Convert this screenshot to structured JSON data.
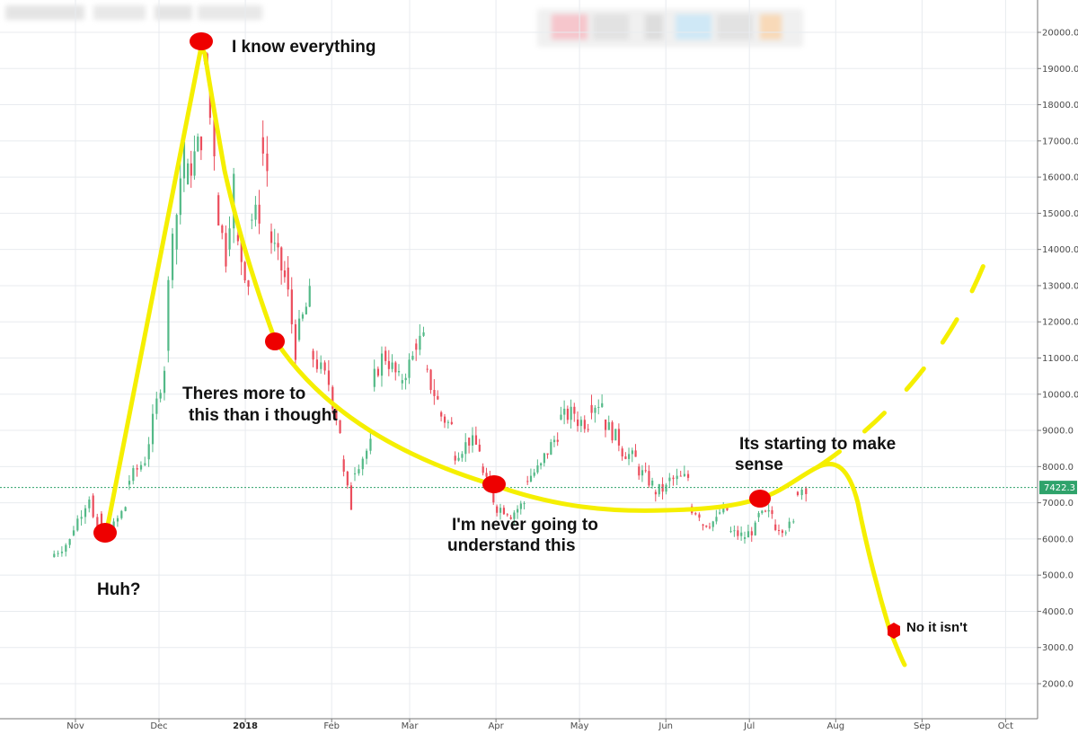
{
  "chart_data": {
    "type": "candlestick",
    "x_ticks": [
      "Nov",
      "Dec",
      "2018",
      "Feb",
      "Mar",
      "Apr",
      "May",
      "Jun",
      "Jul",
      "Aug",
      "Sep",
      "Oct"
    ],
    "y_ticks": [
      "2000.0",
      "3000.0",
      "4000.0",
      "5000.0",
      "6000.0",
      "7000.0",
      "8000.0",
      "9000.0",
      "10000.0",
      "11000.0",
      "12000.0",
      "13000.0",
      "14000.0",
      "15000.0",
      "16000.0",
      "17000.0",
      "18000.0",
      "19000.0",
      "20000.0"
    ],
    "ylim": [
      1000,
      21000
    ],
    "current_price": 7422.3,
    "current_price_label": "7422.3",
    "grid": true,
    "colors": {
      "up": "#53b987",
      "down": "#eb4d5c",
      "annotation_line": "#f5ef00",
      "marker": "#ee0000",
      "price_line": "#2fa36b"
    },
    "candles_approx": [
      [
        "2017-10-24",
        5500,
        5950
      ],
      [
        "2017-10-31",
        6100,
        7200
      ],
      [
        "2017-11-07",
        7200,
        5900
      ],
      [
        "2017-11-10",
        6700,
        6000
      ],
      [
        "2017-11-13",
        6000,
        6900
      ],
      [
        "2017-11-20",
        7500,
        8200
      ],
      [
        "2017-11-27",
        8200,
        10800
      ],
      [
        "2017-12-04",
        11200,
        14800
      ],
      [
        "2017-12-07",
        14000,
        17000
      ],
      [
        "2017-12-11",
        15800,
        17100
      ],
      [
        "2017-12-17",
        19200,
        19000
      ],
      [
        "2017-12-19",
        18500,
        16800
      ],
      [
        "2017-12-22",
        15500,
        13800
      ],
      [
        "2017-12-26",
        14000,
        15900
      ],
      [
        "2017-12-29",
        14400,
        13100
      ],
      [
        "2018-01-03",
        14800,
        15000
      ],
      [
        "2018-01-07",
        17100,
        16200
      ],
      [
        "2018-01-10",
        14500,
        13200
      ],
      [
        "2018-01-16",
        13500,
        11200
      ],
      [
        "2018-01-20",
        11500,
        12700
      ],
      [
        "2018-01-25",
        11200,
        10300
      ],
      [
        "2018-02-01",
        10200,
        9000
      ],
      [
        "2018-02-05",
        8200,
        6900
      ],
      [
        "2018-02-09",
        7800,
        8600
      ],
      [
        "2018-02-16",
        10200,
        11000
      ],
      [
        "2018-02-20",
        11200,
        10400
      ],
      [
        "2018-02-26",
        10300,
        11000
      ],
      [
        "2018-03-03",
        11400,
        11500
      ],
      [
        "2018-03-07",
        10700,
        9800
      ],
      [
        "2018-03-12",
        9500,
        9100
      ],
      [
        "2018-03-17",
        8300,
        8600
      ],
      [
        "2018-03-22",
        8800,
        8500
      ],
      [
        "2018-03-27",
        8000,
        7100
      ],
      [
        "2018-04-01",
        6900,
        6800
      ],
      [
        "2018-04-06",
        6600,
        7000
      ],
      [
        "2018-04-12",
        7600,
        8000
      ],
      [
        "2018-04-18",
        8100,
        8900
      ],
      [
        "2018-04-24",
        9300,
        9500
      ],
      [
        "2018-04-30",
        9300,
        9200
      ],
      [
        "2018-05-05",
        9700,
        9800
      ],
      [
        "2018-05-10",
        9300,
        8700
      ],
      [
        "2018-05-16",
        8500,
        8200
      ],
      [
        "2018-05-22",
        8000,
        7500
      ],
      [
        "2018-05-28",
        7300,
        7400
      ],
      [
        "2018-06-02",
        7600,
        7700
      ],
      [
        "2018-06-10",
        6900,
        6700
      ],
      [
        "2018-06-14",
        6400,
        6500
      ],
      [
        "2018-06-20",
        6700,
        6800
      ],
      [
        "2018-06-24",
        6200,
        6100
      ],
      [
        "2018-06-29",
        6000,
        6300
      ],
      [
        "2018-07-04",
        6600,
        6700
      ],
      [
        "2018-07-10",
        6400,
        6300
      ],
      [
        "2018-07-15",
        6300,
        6400
      ],
      [
        "2018-07-18",
        7300,
        7400
      ],
      [
        "2018-07-21",
        7400,
        7422
      ]
    ],
    "annotations": {
      "huh": "Huh?",
      "know_everything": "I know everything",
      "theres_more_1": "Theres more to",
      "theres_more_2": "this than i thought",
      "never_1": "I'm never going to",
      "never_2": "understand this",
      "starting_1": "Its starting to make",
      "starting_2": "sense",
      "no_it_isnt": "No it isn't"
    }
  }
}
